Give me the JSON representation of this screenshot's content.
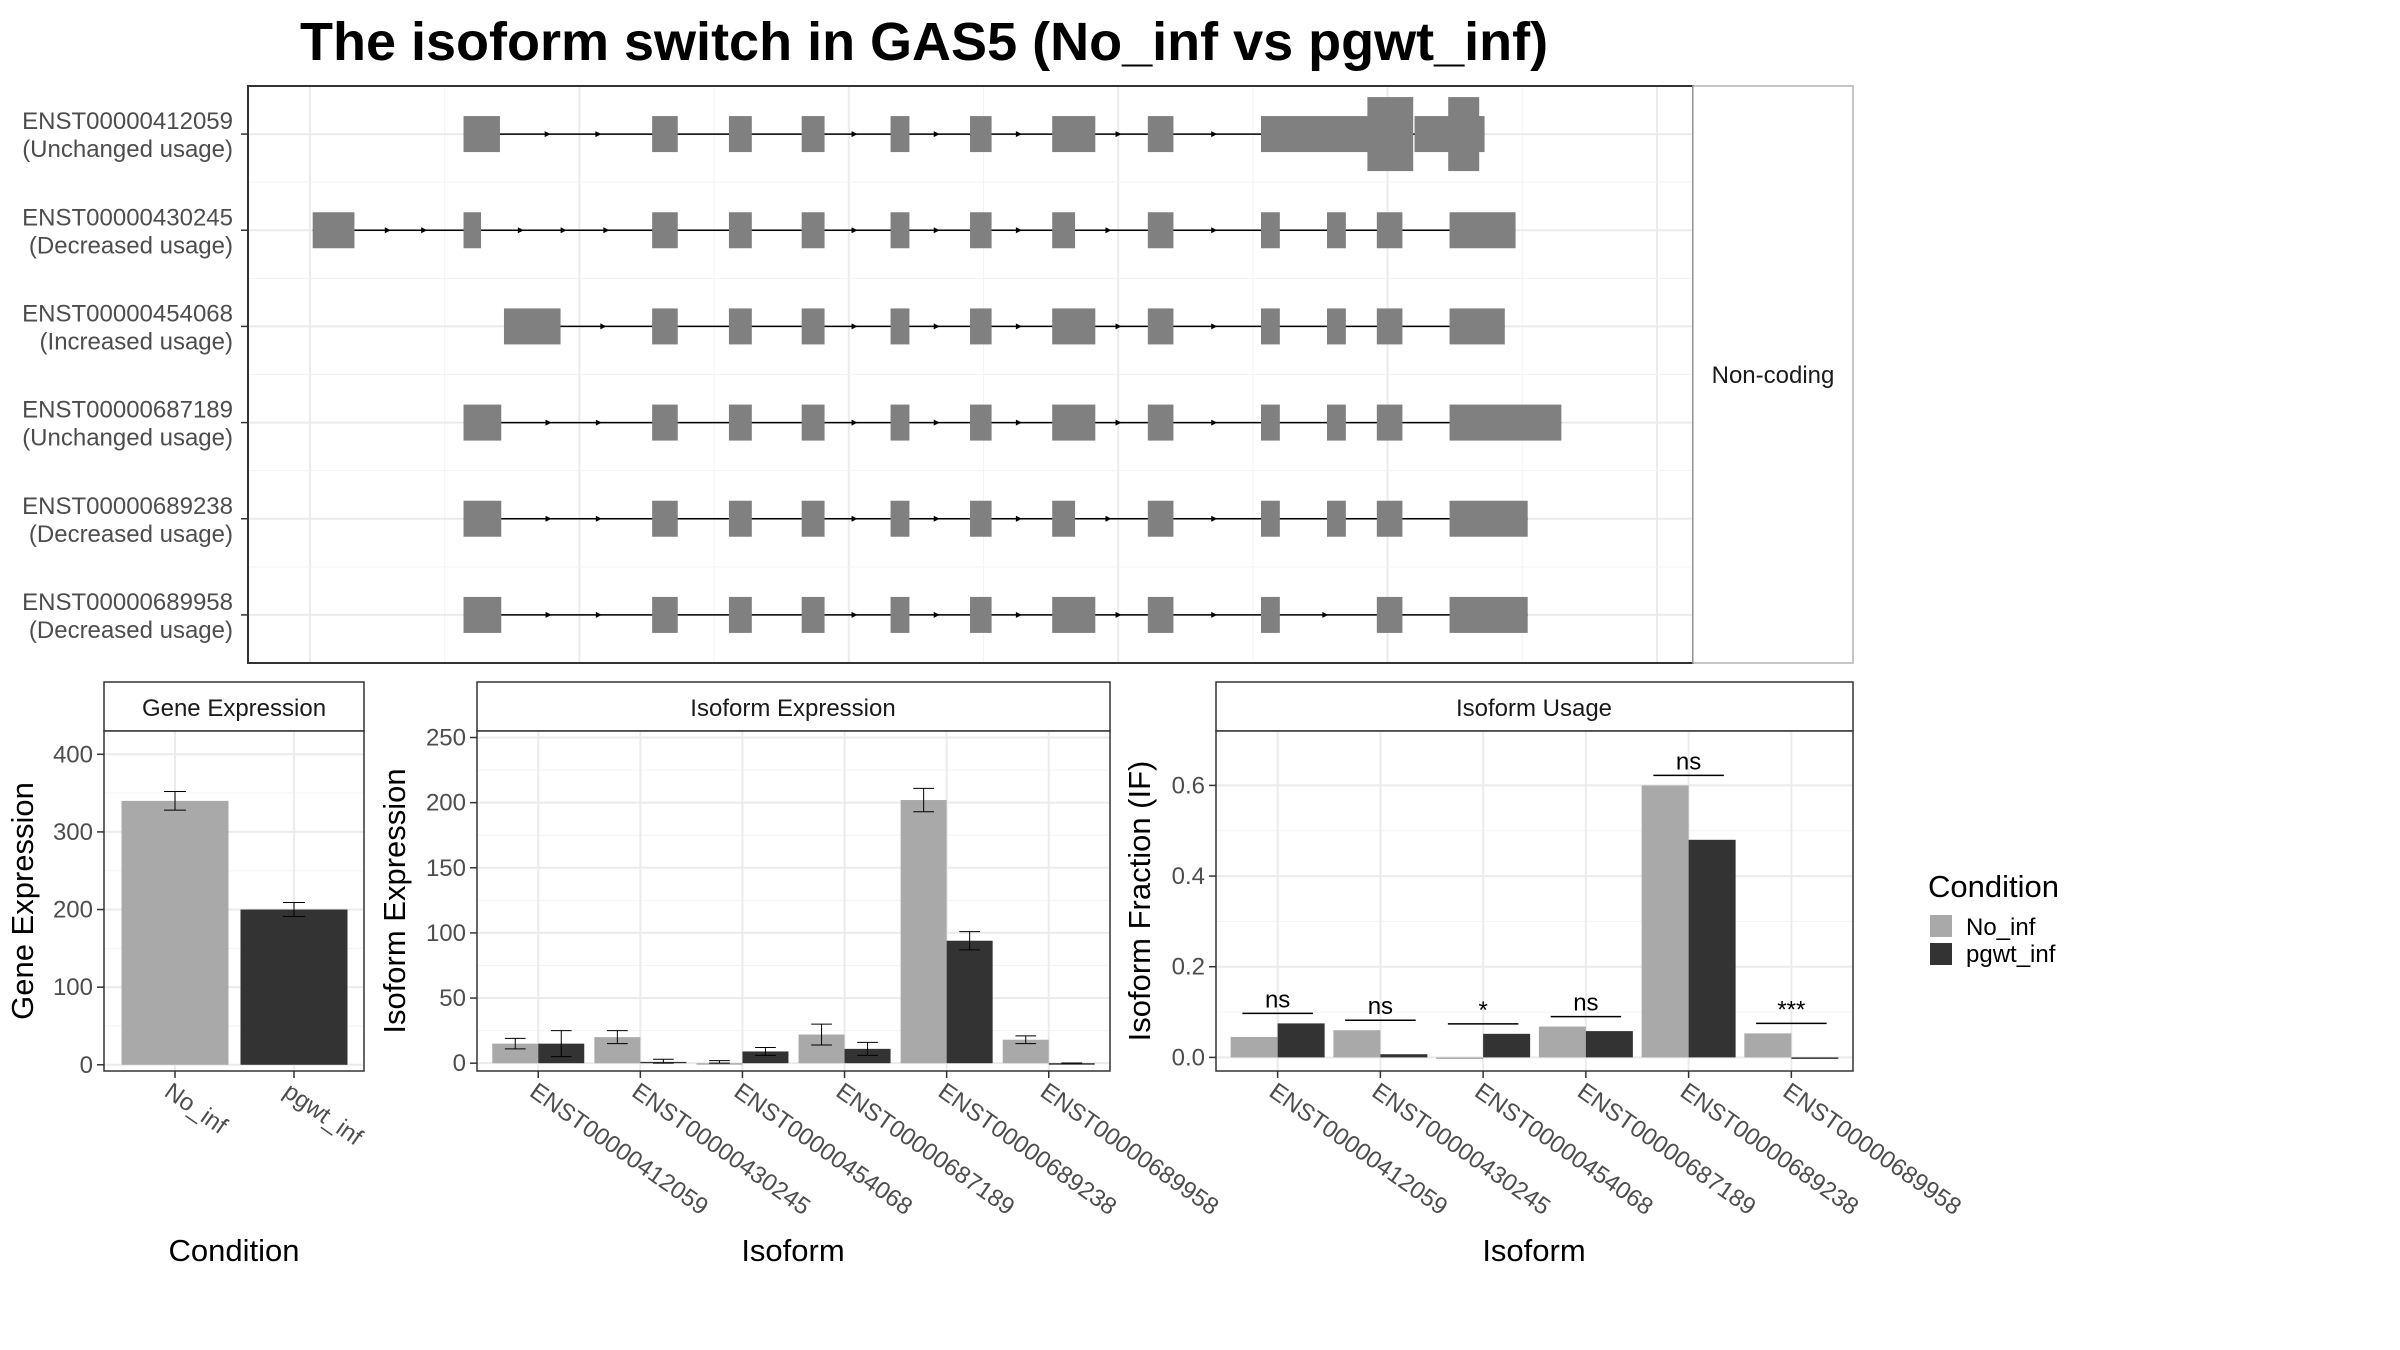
{
  "title": "The isoform switch in GAS5 (No_inf vs pgwt_inf)",
  "colors": {
    "No_inf": "#a9a9a9",
    "pgwt_inf": "#333333",
    "exon": "#808080",
    "grid": "#ebebeb",
    "border": "#333333"
  },
  "chart_data": [
    {
      "type": "transcript_structure",
      "strip_label": "Non-coding",
      "coordinate_scale": "relative (no axis shown)",
      "transcripts": [
        {
          "id": "ENST00000412059",
          "usage": "(Unchanged usage)",
          "exons": [
            [
              0.114,
              0.141
            ],
            [
              0.254,
              0.273
            ],
            [
              0.311,
              0.328
            ],
            [
              0.365,
              0.382
            ],
            [
              0.431,
              0.445
            ],
            [
              0.49,
              0.506
            ],
            [
              0.551,
              0.583
            ],
            [
              0.622,
              0.641
            ],
            [
              0.706,
              0.792
            ],
            [
              0.82,
              0.855
            ],
            [
              0.855,
              0.872
            ]
          ],
          "thin": [
            false,
            false,
            false,
            false,
            false,
            false,
            false,
            false,
            false,
            true,
            false
          ]
        },
        {
          "id": "ENST00000430245",
          "usage": "(Decreased usage)",
          "exons": [
            [
              0.002,
              0.033
            ],
            [
              0.114,
              0.127
            ],
            [
              0.254,
              0.273
            ],
            [
              0.311,
              0.328
            ],
            [
              0.365,
              0.382
            ],
            [
              0.431,
              0.445
            ],
            [
              0.49,
              0.506
            ],
            [
              0.551,
              0.568
            ],
            [
              0.622,
              0.641
            ],
            [
              0.706,
              0.72
            ],
            [
              0.755,
              0.769
            ],
            [
              0.792,
              0.811
            ],
            [
              0.846,
              0.895
            ]
          ]
        },
        {
          "id": "ENST00000454068",
          "usage": "(Increased usage)",
          "exons": [
            [
              0.144,
              0.186
            ],
            [
              0.254,
              0.273
            ],
            [
              0.311,
              0.328
            ],
            [
              0.365,
              0.382
            ],
            [
              0.431,
              0.445
            ],
            [
              0.49,
              0.506
            ],
            [
              0.551,
              0.583
            ],
            [
              0.622,
              0.641
            ],
            [
              0.706,
              0.72
            ],
            [
              0.755,
              0.769
            ],
            [
              0.792,
              0.811
            ],
            [
              0.846,
              0.887
            ]
          ]
        },
        {
          "id": "ENST00000687189",
          "usage": "(Unchanged usage)",
          "exons": [
            [
              0.114,
              0.142
            ],
            [
              0.254,
              0.273
            ],
            [
              0.311,
              0.328
            ],
            [
              0.365,
              0.382
            ],
            [
              0.431,
              0.445
            ],
            [
              0.49,
              0.506
            ],
            [
              0.551,
              0.583
            ],
            [
              0.622,
              0.641
            ],
            [
              0.706,
              0.72
            ],
            [
              0.755,
              0.769
            ],
            [
              0.792,
              0.811
            ],
            [
              0.846,
              0.929
            ]
          ]
        },
        {
          "id": "ENST00000689238",
          "usage": "(Decreased usage)",
          "exons": [
            [
              0.114,
              0.142
            ],
            [
              0.254,
              0.273
            ],
            [
              0.311,
              0.328
            ],
            [
              0.365,
              0.382
            ],
            [
              0.431,
              0.445
            ],
            [
              0.49,
              0.506
            ],
            [
              0.551,
              0.568
            ],
            [
              0.622,
              0.641
            ],
            [
              0.706,
              0.72
            ],
            [
              0.755,
              0.769
            ],
            [
              0.792,
              0.811
            ],
            [
              0.846,
              0.904
            ]
          ]
        },
        {
          "id": "ENST00000689958",
          "usage": "(Decreased usage)",
          "exons": [
            [
              0.114,
              0.142
            ],
            [
              0.254,
              0.273
            ],
            [
              0.311,
              0.328
            ],
            [
              0.365,
              0.382
            ],
            [
              0.431,
              0.445
            ],
            [
              0.49,
              0.506
            ],
            [
              0.551,
              0.583
            ],
            [
              0.622,
              0.641
            ],
            [
              0.706,
              0.72
            ],
            [
              0.792,
              0.811
            ],
            [
              0.846,
              0.904
            ]
          ]
        }
      ]
    },
    {
      "type": "bar",
      "strip_label": "Gene Expression",
      "xlabel": "Condition",
      "ylabel": "Gene Expression",
      "categories": [
        "No_inf",
        "pgwt_inf"
      ],
      "values": [
        340,
        200
      ],
      "error_low": [
        328,
        191
      ],
      "error_high": [
        352,
        209
      ],
      "ylim": [
        -8,
        430
      ],
      "yticks": [
        0,
        100,
        200,
        300,
        400
      ]
    },
    {
      "type": "bar",
      "strip_label": "Isoform Expression",
      "xlabel": "Isoform",
      "ylabel": "Isoform Expression",
      "categories": [
        "ENST00000412059",
        "ENST00000430245",
        "ENST00000454068",
        "ENST00000687189",
        "ENST00000689238",
        "ENST00000689958"
      ],
      "series": [
        {
          "name": "No_inf",
          "values": [
            15,
            20,
            0,
            22,
            202,
            18
          ],
          "error_low": [
            11,
            15,
            0,
            14,
            193,
            15
          ],
          "error_high": [
            19,
            25,
            2,
            30,
            211,
            21
          ]
        },
        {
          "name": "pgwt_inf",
          "values": [
            15,
            1,
            9,
            11,
            94,
            0
          ],
          "error_low": [
            5,
            0,
            6,
            6,
            87,
            0
          ],
          "error_high": [
            25,
            3,
            12,
            16,
            101,
            0
          ]
        }
      ],
      "ylim": [
        -6,
        255
      ],
      "yticks": [
        0,
        50,
        100,
        150,
        200,
        250
      ]
    },
    {
      "type": "bar",
      "strip_label": "Isoform Usage",
      "xlabel": "Isoform",
      "ylabel": "Isoform Fraction (IF)",
      "categories": [
        "ENST00000412059",
        "ENST00000430245",
        "ENST00000454068",
        "ENST00000687189",
        "ENST00000689238",
        "ENST00000689958"
      ],
      "series": [
        {
          "name": "No_inf",
          "values": [
            0.045,
            0.06,
            0.0,
            0.068,
            0.6,
            0.053
          ]
        },
        {
          "name": "pgwt_inf",
          "values": [
            0.075,
            0.007,
            0.052,
            0.058,
            0.48,
            0.0
          ]
        }
      ],
      "significance": [
        "ns",
        "ns",
        "*",
        "ns",
        "ns",
        "***"
      ],
      "ylim": [
        -0.03,
        0.72
      ],
      "yticks": [
        0.0,
        0.2,
        0.4,
        0.6
      ],
      "ytick_labels": [
        "0.0",
        "0.2",
        "0.4",
        "0.6"
      ]
    }
  ],
  "legend": {
    "title": "Condition",
    "items": [
      "No_inf",
      "pgwt_inf"
    ]
  }
}
